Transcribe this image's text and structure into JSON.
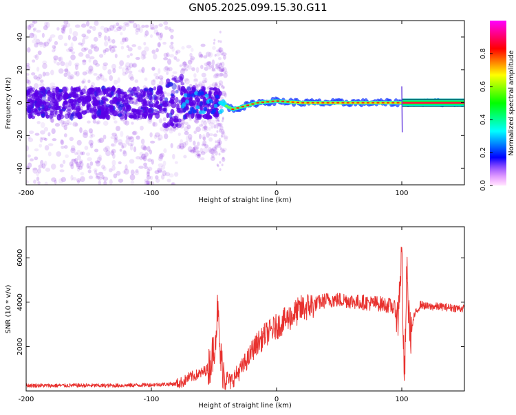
{
  "title": "GN05.2025.099.15.30.G11",
  "chart_data": [
    {
      "type": "heatmap",
      "xlabel": "Height of straight line (km)",
      "ylabel": "Frequency (Hz)",
      "xlim": [
        -200,
        150
      ],
      "ylim": [
        -50,
        50
      ],
      "xticks": [
        -200,
        -100,
        0,
        100
      ],
      "yticks": [
        -40,
        -20,
        0,
        20,
        40
      ],
      "colorbar": {
        "label": "Normalized spectral amplitude",
        "range": [
          0,
          1
        ],
        "ticks": [
          0.0,
          0.2,
          0.4,
          0.6,
          0.8
        ],
        "colormap": [
          "#ff00ff",
          "#0000ff",
          "#00ffff",
          "#00ff00",
          "#ffff00",
          "#ff0000",
          "#ff00ff"
        ]
      },
      "center_frequency_trace": [
        {
          "x": -45,
          "y": 0
        },
        {
          "x": -35,
          "y": -4
        },
        {
          "x": -25,
          "y": -2
        },
        {
          "x": -15,
          "y": 0
        },
        {
          "x": 0,
          "y": 1
        },
        {
          "x": 20,
          "y": 0
        },
        {
          "x": 60,
          "y": 0
        },
        {
          "x": 100,
          "y": 0
        },
        {
          "x": 150,
          "y": 0
        }
      ]
    },
    {
      "type": "line",
      "xlabel": "Height of straight line (km)",
      "ylabel": "SNR (10 * v/v)",
      "xlim": [
        -200,
        150
      ],
      "ylim": [
        0,
        7400
      ],
      "xticks": [
        -200,
        -100,
        0,
        100
      ],
      "yticks": [
        2000,
        4000,
        6000
      ],
      "series": [
        {
          "color": "#e8312e",
          "points": [
            [
              -200,
              250
            ],
            [
              -180,
              240
            ],
            [
              -160,
              250
            ],
            [
              -140,
              240
            ],
            [
              -120,
              250
            ],
            [
              -100,
              280
            ],
            [
              -90,
              300
            ],
            [
              -80,
              320
            ],
            [
              -75,
              400
            ],
            [
              -70,
              600
            ],
            [
              -65,
              700
            ],
            [
              -60,
              800
            ],
            [
              -55,
              1000
            ],
            [
              -52,
              1400
            ],
            [
              -50,
              2000
            ],
            [
              -48,
              2900
            ],
            [
              -47,
              3800
            ],
            [
              -46,
              2600
            ],
            [
              -45,
              1600
            ],
            [
              -43,
              1000
            ],
            [
              -40,
              600
            ],
            [
              -37,
              400
            ],
            [
              -34,
              600
            ],
            [
              -31,
              800
            ],
            [
              -28,
              1000
            ],
            [
              -25,
              1300
            ],
            [
              -22,
              1500
            ],
            [
              -20,
              1800
            ],
            [
              -17,
              2000
            ],
            [
              -15,
              2200
            ],
            [
              -12,
              2300
            ],
            [
              -10,
              2500
            ],
            [
              -5,
              2700
            ],
            [
              0,
              2900
            ],
            [
              5,
              3100
            ],
            [
              10,
              3300
            ],
            [
              15,
              3500
            ],
            [
              20,
              3700
            ],
            [
              25,
              3800
            ],
            [
              30,
              3900
            ],
            [
              35,
              4000
            ],
            [
              40,
              4100
            ],
            [
              45,
              4100
            ],
            [
              50,
              4100
            ],
            [
              55,
              4100
            ],
            [
              60,
              4050
            ],
            [
              65,
              4000
            ],
            [
              70,
              4000
            ],
            [
              75,
              3950
            ],
            [
              80,
              3950
            ],
            [
              85,
              3900
            ],
            [
              90,
              3850
            ],
            [
              95,
              3700
            ],
            [
              97,
              3200
            ],
            [
              98,
              4500
            ],
            [
              99,
              5200
            ],
            [
              100,
              6500
            ],
            [
              101,
              3000
            ],
            [
              102,
              300
            ],
            [
              103,
              2500
            ],
            [
              104,
              5600
            ],
            [
              105,
              4000
            ],
            [
              107,
              2500
            ],
            [
              110,
              3400
            ],
            [
              115,
              3900
            ],
            [
              120,
              3800
            ],
            [
              130,
              3800
            ],
            [
              140,
              3750
            ],
            [
              150,
              3700
            ]
          ]
        }
      ]
    }
  ]
}
